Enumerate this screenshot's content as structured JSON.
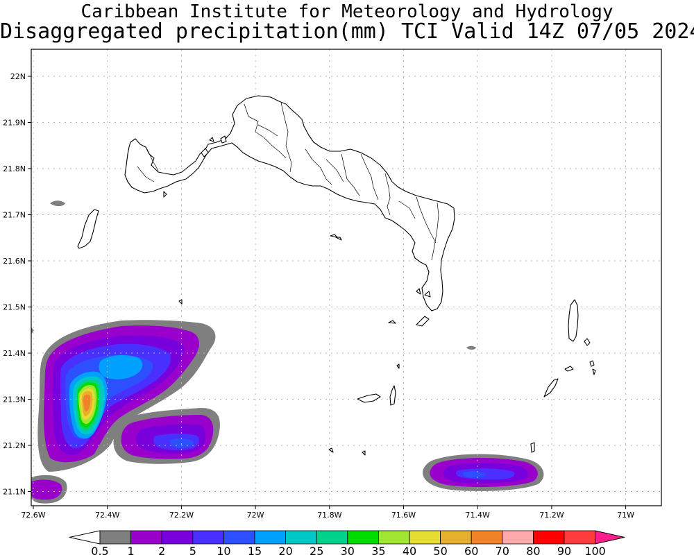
{
  "header": {
    "line1": "Caribbean Institute for Meteorology and Hydrology",
    "line2": "Disaggregated precipitation(mm) TCI Valid 14Z 07/05 2024"
  },
  "map": {
    "lon_range": [
      -72.6,
      -70.9
    ],
    "lat_range": [
      21.065,
      22.05
    ],
    "grid": true,
    "lat_ticks": [
      "22N",
      "21.9N",
      "21.8N",
      "21.7N",
      "21.6N",
      "21.5N",
      "21.4N",
      "21.3N",
      "21.2N",
      "21.1N"
    ],
    "lon_ticks": [
      "72.6W",
      "72.4W",
      "72.2W",
      "72W",
      "71.8W",
      "71.6W",
      "71.4W",
      "71.2W",
      "71W"
    ]
  },
  "colorbar": {
    "labels": [
      "0.5",
      "1",
      "2",
      "5",
      "10",
      "15",
      "20",
      "25",
      "30",
      "35",
      "40",
      "50",
      "60",
      "70",
      "80",
      "90",
      "100"
    ],
    "colors": [
      "#7f7f7f",
      "#9a00cc",
      "#7800dc",
      "#4a30ff",
      "#2d50ff",
      "#00a0ff",
      "#00c8c8",
      "#00d28c",
      "#00dc00",
      "#a0e632",
      "#e6dc32",
      "#e6af2d",
      "#f08228",
      "#ffaaaa",
      "#ff0000",
      "#ff3c3c"
    ],
    "end_colors": {
      "left": "#ffffff",
      "right": "#ff1e8c"
    }
  },
  "precip_regions": [
    {
      "name": "west-cell",
      "peak_mm": "60-70"
    },
    {
      "name": "west-arm",
      "peak_mm": "5-10"
    },
    {
      "name": "southwest-cell",
      "peak_mm": "1-2"
    },
    {
      "name": "south-cell",
      "peak_mm": "5-10"
    },
    {
      "name": "northwest-speck",
      "peak_mm": "0.5-1"
    },
    {
      "name": "central-speck",
      "peak_mm": "0.5-1"
    }
  ]
}
